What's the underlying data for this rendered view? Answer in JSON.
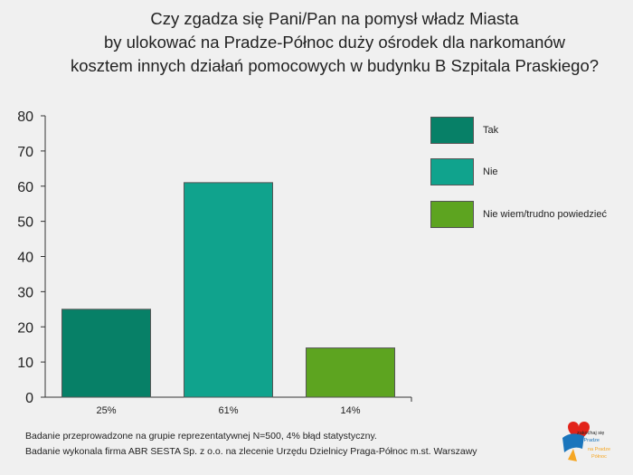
{
  "title_lines": [
    "Czy zgadza się Pani/Pan na pomysł władz Miasta",
    "by ulokować na Pradze-Północ duży ośrodek dla narkomanów",
    "kosztem innych działań pomocowych w budynku B Szpitala Praskiego?"
  ],
  "chart_data": {
    "type": "bar",
    "categories": [
      "Tak",
      "Nie",
      "Nie wiem/trudno powiedzieć"
    ],
    "values": [
      25,
      61,
      14
    ],
    "value_labels": [
      "25%",
      "61%",
      "14%"
    ],
    "colors": [
      "#078067",
      "#10a38d",
      "#5da420"
    ],
    "ylim": [
      0,
      80
    ],
    "yticks": [
      0,
      10,
      20,
      30,
      40,
      50,
      60,
      70,
      80
    ],
    "grid": false,
    "legend_position": "right"
  },
  "legend": [
    {
      "label": "Tak",
      "color": "#078067"
    },
    {
      "label": "Nie",
      "color": "#10a38d"
    },
    {
      "label": "Nie wiem/trudno powiedzieć",
      "color": "#5da420"
    }
  ],
  "footnotes": [
    "Badanie przeprowadzone na grupie reprezentatywnej N=500, 4% błąd statystyczny.",
    "Badanie wykonala firma ABR SESTA Sp. z o.o. na zlecenie Urzędu Dzielnicy Praga-Północ m.st. Warszawy"
  ],
  "logo": {
    "text_lines": [
      "zakochaj się",
      "w Pradze",
      "na Pradze",
      "Północ"
    ],
    "colors": [
      "#e2231a",
      "#f5a623",
      "#1a75bc"
    ]
  }
}
